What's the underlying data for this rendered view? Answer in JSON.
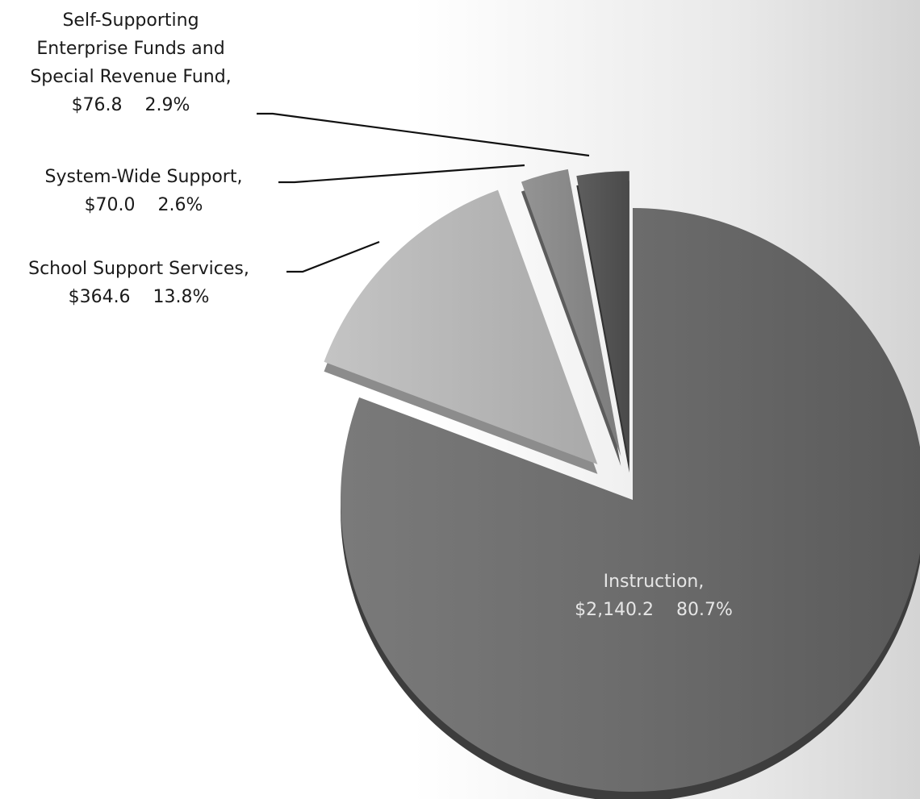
{
  "chart_data": {
    "type": "pie",
    "title": "",
    "slices": [
      {
        "name": "Instruction",
        "value": 2140.2,
        "percent": 80.7,
        "label_lines": [
          "Instruction,",
          "$2,140.2    80.7%"
        ],
        "color": "#6e6e6e",
        "exploded": false
      },
      {
        "name": "School Support Services",
        "value": 364.6,
        "percent": 13.8,
        "label_lines": [
          "School Support Services,",
          "$364.6    13.8%"
        ],
        "color": "#b4b4b4",
        "exploded": true
      },
      {
        "name": "System-Wide Support",
        "value": 70.0,
        "percent": 2.6,
        "label_lines": [
          "System-Wide Support,",
          "$70.0    2.6%"
        ],
        "color": "#8a8a8a",
        "exploded": true
      },
      {
        "name": "Self-Supporting Enterprise Funds and Special Revenue Fund",
        "value": 76.8,
        "percent": 2.9,
        "label_lines": [
          "Self-Supporting",
          "Enterprise Funds and",
          "Special Revenue Fund,",
          "$76.8    2.9%"
        ],
        "color": "#575757",
        "exploded": true
      }
    ],
    "legend": "none",
    "style": "3d-exploded"
  }
}
